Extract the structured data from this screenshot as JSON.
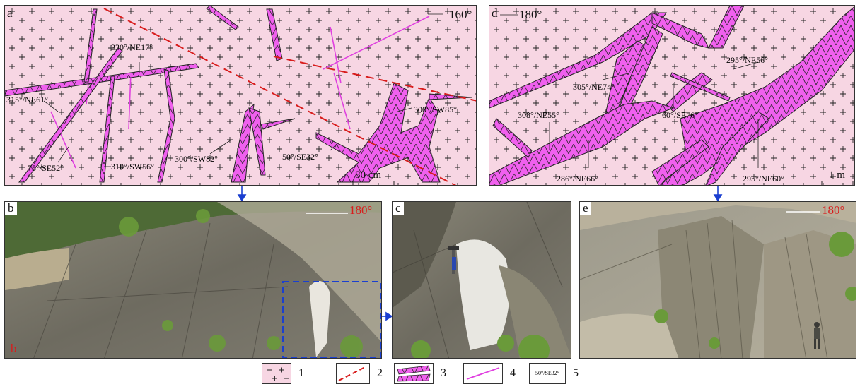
{
  "panels": {
    "a": {
      "label": "a",
      "orientation": "160°",
      "scale": "80 cm",
      "attitudes": [
        "330°/NE17°",
        "315°/NE61°",
        "75°/SE52°",
        "310°/SW56°",
        "300°/SW82°",
        "50°/SE32°",
        "300°/SW85°"
      ]
    },
    "d": {
      "label": "d",
      "orientation": "180°",
      "scale": "1 m",
      "attitudes": [
        "305°/NE74°",
        "295°/NE56°",
        "308°/NE55°",
        "60°/SE76°",
        "286°/NE66°",
        "295°/NE60°"
      ]
    },
    "b": {
      "label": "b",
      "orientation": "180°",
      "inner_label": "b"
    },
    "c": {
      "label": "c"
    },
    "e": {
      "label": "e",
      "orientation": "180°"
    }
  },
  "legend": {
    "items": [
      {
        "num": "1",
        "icon": "granite-icon"
      },
      {
        "num": "2",
        "icon": "fault-icon"
      },
      {
        "num": "3",
        "icon": "dike-icon"
      },
      {
        "num": "4",
        "icon": "vein-icon"
      },
      {
        "num": "5",
        "icon": "attitude-icon",
        "sample": "50°/SE32°"
      }
    ]
  },
  "colors": {
    "granite_bg": "#f7d6e3",
    "dike_fill": "#f060ee",
    "fault": "#d81c1c",
    "vein": "#e040e0",
    "arrow": "#1a3fd0",
    "orientation_text": "#d81c1c"
  }
}
